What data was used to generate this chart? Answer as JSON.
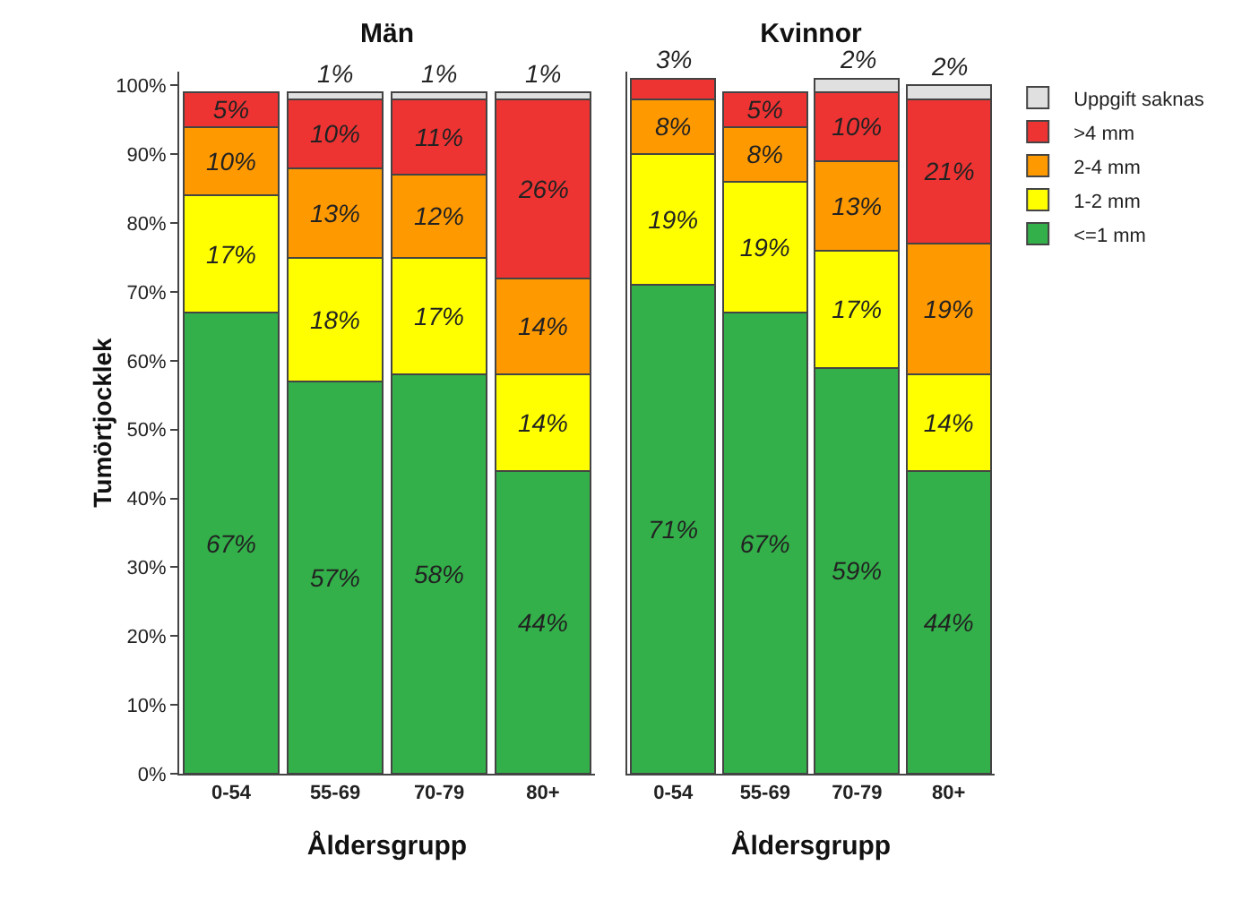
{
  "chart_data": [
    {
      "type": "bar",
      "title": "Män",
      "xlabel": "Åldersgrupp",
      "ylabel": "Tumörtjocklek",
      "categories": [
        "0-54",
        "55-69",
        "70-79",
        "80+"
      ],
      "stacked": true,
      "ylim": [
        0,
        102
      ],
      "yticks": [
        {
          "value": 0,
          "label": "0%"
        },
        {
          "value": 10,
          "label": "10%"
        },
        {
          "value": 20,
          "label": "20%"
        },
        {
          "value": 30,
          "label": "30%"
        },
        {
          "value": 40,
          "label": "40%"
        },
        {
          "value": 50,
          "label": "50%"
        },
        {
          "value": 60,
          "label": "60%"
        },
        {
          "value": 70,
          "label": "70%"
        },
        {
          "value": 80,
          "label": "80%"
        },
        {
          "value": 90,
          "label": "90%"
        },
        {
          "value": 100,
          "label": "100%"
        }
      ],
      "grid": false,
      "legend": false,
      "series": [
        {
          "color": "#33b04a",
          "values": [
            67,
            57,
            58,
            44
          ],
          "value_labels": [
            "67%",
            "57%",
            "58%",
            "44%"
          ]
        },
        {
          "color": "#ffff00",
          "values": [
            17,
            18,
            17,
            14
          ],
          "value_labels": [
            "17%",
            "18%",
            "17%",
            "14%"
          ]
        },
        {
          "color": "#ff9900",
          "values": [
            10,
            13,
            12,
            14
          ],
          "value_labels": [
            "10%",
            "13%",
            "12%",
            "14%"
          ]
        },
        {
          "color": "#ee3333",
          "values": [
            5,
            10,
            11,
            26
          ],
          "value_labels": [
            "5%",
            "10%",
            "11%",
            "26%"
          ]
        },
        {
          "color": "#e0e0e0",
          "values": [
            null,
            1,
            1,
            1
          ],
          "value_labels": [
            null,
            "1%",
            "1%",
            "1%"
          ]
        }
      ]
    },
    {
      "type": "bar",
      "title": "Kvinnor",
      "xlabel": "Åldersgrupp",
      "categories": [
        "0-54",
        "55-69",
        "70-79",
        "80+"
      ],
      "stacked": true,
      "ylim": [
        0,
        102
      ],
      "tick_labels": "x",
      "grid": false,
      "legend": "top right",
      "series": [
        {
          "name": "<=1 mm",
          "color": "#33b04a",
          "values": [
            71,
            67,
            59,
            44
          ],
          "value_labels": [
            "71%",
            "67%",
            "59%",
            "44%"
          ]
        },
        {
          "name": "1-2 mm",
          "color": "#ffff00",
          "values": [
            19,
            19,
            17,
            14
          ],
          "value_labels": [
            "19%",
            "19%",
            "17%",
            "14%"
          ]
        },
        {
          "name": "2-4 mm",
          "color": "#ff9900",
          "values": [
            8,
            8,
            13,
            19
          ],
          "value_labels": [
            "8%",
            "8%",
            "13%",
            "19%"
          ]
        },
        {
          "name": ">4 mm",
          "color": "#ee3333",
          "values": [
            3,
            5,
            10,
            21
          ],
          "value_labels": [
            "3%",
            "5%",
            "10%",
            "21%"
          ]
        },
        {
          "name": "Uppgift saknas",
          "color": "#e0e0e0",
          "values": [
            null,
            null,
            2,
            2
          ],
          "value_labels": [
            null,
            null,
            "2%",
            "2%"
          ]
        }
      ]
    }
  ]
}
